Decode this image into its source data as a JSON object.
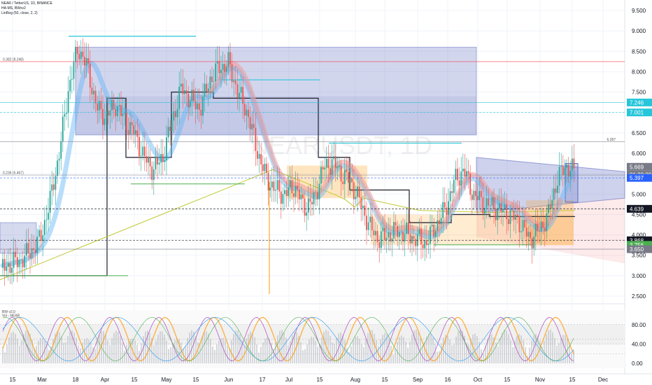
{
  "header": {
    "symbol_line": "NEAR / TetherUS, 1D, BINANCE",
    "indicator_1": "HA-MS, BWxv2",
    "indicator_2": "LinReg (50, close, 2, 2)"
  },
  "watermark": "NEARUSDT, 1D",
  "chart_data": {
    "type": "candlestick",
    "symbol": "NEARUSDT",
    "timeframe": "1D",
    "x_tick_labels": [
      "15",
      "Mar",
      "18",
      "Apr",
      "15",
      "May",
      "15",
      "Jun",
      "17",
      "Jul",
      "15",
      "Aug",
      "15",
      "Sep",
      "16",
      "Oct",
      "15",
      "Nov",
      "15",
      "Dec"
    ],
    "price_axis_labels": [
      "9.500",
      "9.000",
      "8.500",
      "8.000",
      "7.500",
      "7.000",
      "6.500",
      "6.000",
      "5.500",
      "5.000",
      "4.500",
      "4.000",
      "3.500",
      "3.000",
      "2.500"
    ],
    "ylim": [
      2.5,
      9.5
    ],
    "close_path": [
      3.2,
      3.3,
      3.4,
      3.6,
      3.9,
      4.8,
      6.0,
      7.6,
      8.6,
      8.1,
      7.1,
      6.9,
      7.2,
      6.8,
      6.5,
      5.9,
      5.6,
      5.9,
      6.8,
      7.6,
      7.3,
      7.1,
      7.8,
      8.1,
      8.2,
      7.5,
      7.0,
      6.1,
      5.4,
      5.1,
      5.0,
      5.2,
      4.7,
      4.8,
      5.6,
      5.8,
      5.5,
      5.3,
      4.8,
      4.2,
      3.9,
      4.0,
      4.1,
      4.0,
      3.9,
      3.8,
      4.2,
      4.6,
      5.3,
      5.6,
      5.0,
      4.8,
      4.7,
      4.6,
      4.5,
      4.3,
      3.9,
      4.1,
      4.5,
      5.4,
      5.7,
      5.5
    ],
    "horizontal_levels": [
      {
        "label": "0.382 (8.248)",
        "value": 8.248
      },
      {
        "label": "0.236 (5.467)",
        "value": 5.467
      },
      {
        "label": "6.287",
        "value": 6.287
      }
    ],
    "price_badges": [
      {
        "text": "7.246",
        "value": 7.246,
        "color": "#26c6da"
      },
      {
        "text": "7.001",
        "value": 7.001,
        "color": "#26c6da"
      },
      {
        "text": "5.669",
        "value": 5.669,
        "color": "#787b86"
      },
      {
        "text": "01:28:39",
        "value": 5.5,
        "color": "#787b86"
      },
      {
        "text": "5.397",
        "value": 5.397,
        "color": "#2962ff"
      },
      {
        "text": "4.639",
        "value": 4.639,
        "color": "#131722"
      },
      {
        "text": "3.868",
        "value": 3.868,
        "color": "#131722"
      },
      {
        "text": "3.756",
        "value": 3.756,
        "color": "#4caf50"
      },
      {
        "text": "3.650",
        "value": 3.65,
        "color": "#787b86"
      }
    ],
    "oscillator": {
      "title": "BW v2.0",
      "subtitle": "Vol - NEAR",
      "axis_labels": [
        "80.00",
        "40.00",
        "0.00"
      ],
      "ylim": [
        -10,
        110
      ],
      "levels": [
        80,
        50,
        40,
        20
      ]
    }
  },
  "colors": {
    "bull": "#26a69a",
    "bear": "#ef5350",
    "fib": "#f23645",
    "teal": "#26c6da",
    "blue_zone": "#5c6bc0",
    "orange_zone": "#ff9800",
    "lime": "#c0ca33",
    "green": "#4caf50",
    "grid": "#f0f3fa"
  }
}
